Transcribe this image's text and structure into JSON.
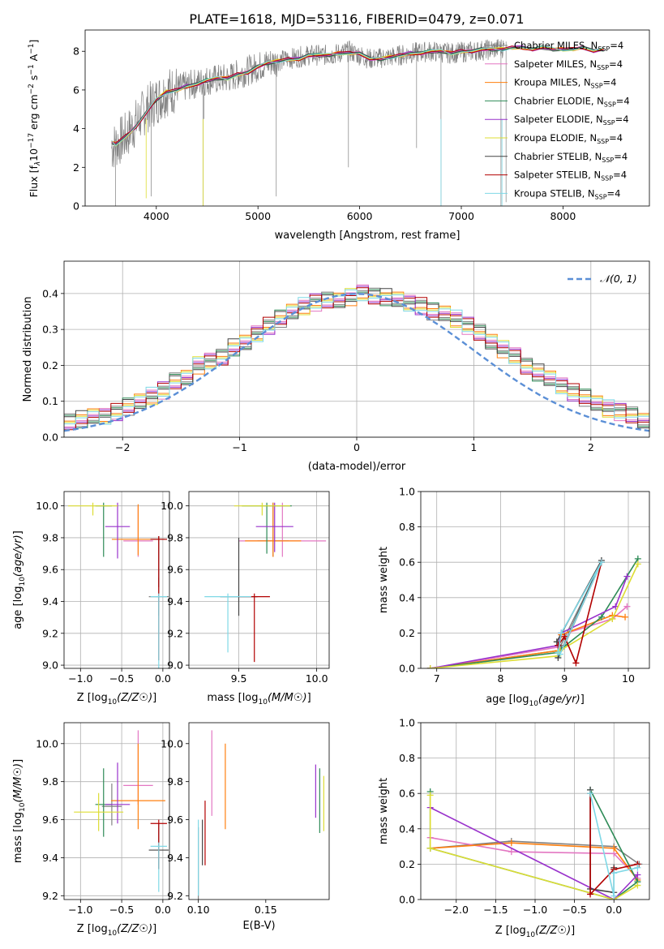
{
  "title": "PLATE=1618, MJD=53116, FIBERID=0479, z=0.071",
  "models": [
    {
      "label": "Chabrier MILES, N",
      "color": "#808080"
    },
    {
      "label": "Salpeter MILES, N",
      "color": "#e377c2"
    },
    {
      "label": "Kroupa MILES, N",
      "color": "#ff7f0e"
    },
    {
      "label": "Chabrier ELODIE, N",
      "color": "#2e8b57"
    },
    {
      "label": "Salpeter ELODIE, N",
      "color": "#9932cc"
    },
    {
      "label": "Kroupa ELODIE, N",
      "color": "#dddd33"
    },
    {
      "label": "Chabrier STELIB, N",
      "color": "#444444"
    },
    {
      "label": "Salpeter STELIB, N",
      "color": "#b20000"
    },
    {
      "label": "Kroupa STELIB, N",
      "color": "#7fd8e6"
    }
  ],
  "legend_suffix": {
    "sub": "SSP",
    "tail": "=4"
  },
  "gauss_legend": "𝒩(0, 1)",
  "chart_data": [
    {
      "type": "line",
      "panel": "spectrum",
      "xlabel": "wavelength [Angstrom, rest frame]",
      "ylabel_parts": [
        "Flux [f",
        "λ",
        "10",
        "−17",
        " erg cm",
        "−2",
        " s",
        "−1",
        " A",
        "−1",
        "]"
      ],
      "xlim": [
        3300,
        8850
      ],
      "ylim": [
        0,
        9.1
      ],
      "xticks": [
        4000,
        5000,
        6000,
        7000,
        8000
      ],
      "yticks": [
        0,
        2,
        4,
        6,
        8
      ],
      "grid": false,
      "legend": "right",
      "data_x": [
        3560,
        3700,
        3900,
        4100,
        4300,
        4500,
        4700,
        4900,
        5100,
        5300,
        5500,
        5700,
        5900,
        6100,
        6300,
        6500,
        6700,
        6900,
        7100,
        7300,
        7420
      ],
      "data_y": [
        3.0,
        3.6,
        5.0,
        5.9,
        6.2,
        6.5,
        6.6,
        7.0,
        7.4,
        7.6,
        7.8,
        7.8,
        8.0,
        7.6,
        7.7,
        7.9,
        8.0,
        7.9,
        8.0,
        8.1,
        8.2
      ],
      "model_x": [
        3560,
        3600,
        3700,
        3800,
        3900,
        4000,
        4100,
        4200,
        4300,
        4400,
        4500,
        4600,
        4700,
        4800,
        4900,
        5000,
        5100,
        5200,
        5300,
        5400,
        5500,
        5600,
        5700,
        5800,
        5900,
        6000,
        6100,
        6200,
        6300,
        6400,
        6500,
        6600,
        6700,
        6800,
        6900,
        7000,
        7100,
        7200,
        7300,
        7400,
        7500,
        7600,
        7700,
        7800,
        7900,
        8000,
        8100,
        8200,
        8300,
        8400
      ],
      "model_y": [
        3.3,
        3.2,
        3.6,
        4.1,
        4.8,
        5.5,
        5.9,
        6.0,
        6.2,
        6.3,
        6.5,
        6.6,
        6.6,
        6.8,
        6.9,
        7.2,
        7.4,
        7.5,
        7.6,
        7.6,
        7.8,
        7.8,
        7.8,
        7.9,
        7.9,
        7.9,
        7.6,
        7.6,
        7.7,
        7.8,
        7.9,
        7.9,
        8.0,
        8.0,
        7.9,
        8.0,
        8.0,
        8.1,
        8.1,
        8.1,
        8.2,
        8.2,
        8.1,
        8.2,
        8.1,
        8.1,
        8.1,
        8.2,
        8.0,
        8.1
      ]
    },
    {
      "type": "histogram",
      "panel": "residuals",
      "xlabel": "(data-model)/error",
      "ylabel": "Normed distribution",
      "xlim": [
        -2.5,
        2.5
      ],
      "ylim": [
        0,
        0.49
      ],
      "xticks": [
        -2,
        -1,
        0,
        1,
        2
      ],
      "yticks": [
        0.0,
        0.1,
        0.2,
        0.3,
        0.4
      ],
      "grid": true,
      "legend": "top-right",
      "bin_width": 0.1,
      "base_values": [
        0.03,
        0.032,
        0.035,
        0.04,
        0.045,
        0.05,
        0.055,
        0.06,
        0.07,
        0.085,
        0.1,
        0.115,
        0.13,
        0.155,
        0.17,
        0.2,
        0.21,
        0.225,
        0.25,
        0.26,
        0.29,
        0.31,
        0.33,
        0.35,
        0.365,
        0.375,
        0.38,
        0.385,
        0.39,
        0.4,
        0.395,
        0.39,
        0.38,
        0.375,
        0.365,
        0.35,
        0.345,
        0.33,
        0.31,
        0.29,
        0.27,
        0.245,
        0.225,
        0.2,
        0.18,
        0.16,
        0.145,
        0.125,
        0.11,
        0.095,
        0.08,
        0.07,
        0.06,
        0.05,
        0.045,
        0.04,
        0.035,
        0.03
      ]
    },
    {
      "type": "scatter",
      "panel": "age-vs-Z",
      "xlabel": "Z [log10(Z/Z☉)]",
      "ylabel": "age [log10(age/yr)]",
      "xlim": [
        -1.2,
        0.08
      ],
      "ylim": [
        8.98,
        10.09
      ],
      "xticks": [
        -1.0,
        -0.5,
        0.0
      ],
      "yticks": [
        9.0,
        9.2,
        9.4,
        9.6,
        9.8,
        10.0
      ],
      "grid": true,
      "points": [
        {
          "model": 0,
          "x": -0.05,
          "y": 9.43,
          "xerr": 0.12,
          "yerr": [
            0.12,
            0.12
          ]
        },
        {
          "model": 1,
          "x": -0.3,
          "y": 9.78,
          "xerr": 0.18,
          "yerr": [
            0.1,
            0.22
          ]
        },
        {
          "model": 2,
          "x": -0.3,
          "y": 9.79,
          "xerr": 0.32,
          "yerr": [
            0.1,
            0.22
          ]
        },
        {
          "model": 3,
          "x": -0.72,
          "y": 10.0,
          "xerr": 0.1,
          "yerr": [
            0.32,
            0.02
          ]
        },
        {
          "model": 4,
          "x": -0.55,
          "y": 9.87,
          "xerr": 0.15,
          "yerr": [
            0.2,
            0.15
          ]
        },
        {
          "model": 5,
          "x": -0.85,
          "y": 10.0,
          "xerr": 0.3,
          "yerr": [
            0.06,
            0.02
          ]
        },
        {
          "model": 6,
          "x": -0.05,
          "y": 9.79,
          "xerr": 0.1,
          "yerr": [
            0.3,
            0.02
          ]
        },
        {
          "model": 7,
          "x": -0.05,
          "y": 9.79,
          "xerr": 0.1,
          "yerr": [
            0.76,
            0.02
          ]
        },
        {
          "model": 8,
          "x": -0.05,
          "y": 9.43,
          "xerr": 0.1,
          "yerr": [
            0.5,
            0.02
          ]
        }
      ]
    },
    {
      "type": "scatter",
      "panel": "age-vs-mass",
      "xlabel": "mass [log10(M/M☉)]",
      "ylabel": "",
      "xlim": [
        9.18,
        10.08
      ],
      "ylim": [
        8.98,
        10.09
      ],
      "xticks": [
        9.5,
        10.0
      ],
      "yticks": [
        9.0,
        9.2,
        9.4,
        9.6,
        9.8,
        10.0
      ],
      "grid": true,
      "points": [
        {
          "model": 0,
          "x": 9.72,
          "y": 9.78,
          "xerr": 0.1,
          "yerr": [
            0.1,
            0.24
          ]
        },
        {
          "model": 1,
          "x": 9.78,
          "y": 9.78,
          "xerr": 0.28,
          "yerr": [
            0.1,
            0.24
          ]
        },
        {
          "model": 2,
          "x": 9.72,
          "y": 9.78,
          "xerr": 0.18,
          "yerr": [
            0.1,
            0.24
          ]
        },
        {
          "model": 3,
          "x": 9.68,
          "y": 10.0,
          "xerr": 0.16,
          "yerr": [
            0.3,
            0.02
          ]
        },
        {
          "model": 4,
          "x": 9.73,
          "y": 9.87,
          "xerr": 0.12,
          "yerr": [
            0.16,
            0.15
          ]
        },
        {
          "model": 5,
          "x": 9.65,
          "y": 10.0,
          "xerr": 0.18,
          "yerr": [
            0.06,
            0.02
          ]
        },
        {
          "model": 6,
          "x": 9.5,
          "y": 9.43,
          "xerr": 0.12,
          "yerr": [
            0.12,
            0.37
          ]
        },
        {
          "model": 7,
          "x": 9.6,
          "y": 9.43,
          "xerr": 0.1,
          "yerr": [
            0.41,
            0.02
          ]
        },
        {
          "model": 8,
          "x": 9.43,
          "y": 9.43,
          "xerr": 0.15,
          "yerr": [
            0.35,
            0.02
          ]
        }
      ]
    },
    {
      "type": "line",
      "panel": "mass-weight-vs-age",
      "xlabel": "age [log10(age/yr)]",
      "ylabel": "mass weight",
      "xlim": [
        6.75,
        10.33
      ],
      "ylim": [
        0,
        1.0
      ],
      "xticks": [
        7,
        8,
        9,
        10
      ],
      "yticks": [
        0.0,
        0.2,
        0.4,
        0.6,
        0.8,
        1.0
      ],
      "grid": true,
      "series": [
        {
          "model": 0,
          "x": [
            6.9,
            8.9,
            8.93,
            9.58,
            9.0
          ],
          "y": [
            0.0,
            0.1,
            0.12,
            0.6,
            0.13
          ]
        },
        {
          "model": 1,
          "x": [
            6.9,
            8.9,
            8.95,
            9.75,
            9.98
          ],
          "y": [
            0.0,
            0.12,
            0.19,
            0.28,
            0.35
          ]
        },
        {
          "model": 2,
          "x": [
            6.9,
            8.9,
            8.95,
            9.75,
            9.95
          ],
          "y": [
            0.0,
            0.1,
            0.19,
            0.3,
            0.29
          ]
        },
        {
          "model": 3,
          "x": [
            6.9,
            8.9,
            8.95,
            9.58,
            10.15
          ],
          "y": [
            0.0,
            0.09,
            0.11,
            0.29,
            0.62
          ]
        },
        {
          "model": 4,
          "x": [
            6.9,
            8.9,
            8.95,
            9.8,
            9.98
          ],
          "y": [
            0.0,
            0.13,
            0.2,
            0.35,
            0.52
          ]
        },
        {
          "model": 5,
          "x": [
            6.9,
            8.9,
            8.93,
            9.75,
            10.15
          ],
          "y": [
            0.0,
            0.07,
            0.1,
            0.28,
            0.59
          ]
        },
        {
          "model": 6,
          "x": [
            8.88,
            9.58,
            8.9
          ],
          "y": [
            0.15,
            0.61,
            0.06
          ]
        },
        {
          "model": 7,
          "x": [
            8.9,
            9.0,
            9.18,
            9.58
          ],
          "y": [
            0.13,
            0.18,
            0.03,
            0.6
          ]
        },
        {
          "model": 8,
          "x": [
            8.9,
            8.95,
            9.58,
            8.93
          ],
          "y": [
            0.09,
            0.2,
            0.6,
            0.08
          ]
        }
      ]
    },
    {
      "type": "scatter",
      "panel": "mass-vs-Z",
      "xlabel": "Z [log10(Z/Z☉)]",
      "ylabel": "mass [log10(M/M☉)]",
      "xlim": [
        -1.2,
        0.08
      ],
      "ylim": [
        9.18,
        10.11
      ],
      "xticks": [
        -1.0,
        -0.5,
        0.0
      ],
      "yticks": [
        9.2,
        9.4,
        9.6,
        9.8,
        10.0
      ],
      "grid": true,
      "points": [
        {
          "model": 0,
          "x": -0.62,
          "y": 9.67,
          "xerr": 0.12,
          "yerr": [
            0.1,
            0.12
          ]
        },
        {
          "model": 1,
          "x": -0.3,
          "y": 9.78,
          "xerr": 0.18,
          "yerr": [
            0.1,
            0.29
          ]
        },
        {
          "model": 2,
          "x": -0.3,
          "y": 9.7,
          "xerr": 0.33,
          "yerr": [
            0.15,
            0.3
          ]
        },
        {
          "model": 3,
          "x": -0.72,
          "y": 9.68,
          "xerr": 0.1,
          "yerr": [
            0.17,
            0.19
          ]
        },
        {
          "model": 4,
          "x": -0.55,
          "y": 9.68,
          "xerr": 0.15,
          "yerr": [
            0.1,
            0.22
          ]
        },
        {
          "model": 5,
          "x": -0.78,
          "y": 9.64,
          "xerr": 0.3,
          "yerr": [
            0.1,
            0.1
          ]
        },
        {
          "model": 6,
          "x": -0.05,
          "y": 9.44,
          "xerr": 0.12,
          "yerr": [
            0.1,
            0.14
          ]
        },
        {
          "model": 7,
          "x": -0.05,
          "y": 9.58,
          "xerr": 0.1,
          "yerr": [
            0.24,
            0.02
          ]
        },
        {
          "model": 8,
          "x": -0.05,
          "y": 9.46,
          "xerr": 0.1,
          "yerr": [
            0.24,
            0.02
          ]
        }
      ]
    },
    {
      "type": "scatter",
      "panel": "mass-vs-EBV",
      "xlabel": "E(B-V)",
      "ylabel": "",
      "xlim": [
        0.093,
        0.197
      ],
      "ylim": [
        9.18,
        10.11
      ],
      "xticks": [
        0.1,
        0.15
      ],
      "yticks": [
        9.2,
        9.4,
        9.6,
        9.8,
        10.0
      ],
      "grid": false,
      "points": [
        {
          "model": 0,
          "x": 0.1,
          "y": 9.46,
          "xerr": 0,
          "yerr": [
            0.28,
            0.1
          ]
        },
        {
          "model": 1,
          "x": 0.11,
          "y": 9.82,
          "xerr": 0,
          "yerr": [
            0.2,
            0.25
          ]
        },
        {
          "model": 2,
          "x": 0.12,
          "y": 9.78,
          "xerr": 0,
          "yerr": [
            0.23,
            0.22
          ]
        },
        {
          "model": 3,
          "x": 0.19,
          "y": 9.7,
          "xerr": 0,
          "yerr": [
            0.17,
            0.17
          ]
        },
        {
          "model": 4,
          "x": 0.187,
          "y": 9.76,
          "xerr": 0,
          "yerr": [
            0.15,
            0.13
          ]
        },
        {
          "model": 5,
          "x": 0.193,
          "y": 9.69,
          "xerr": 0,
          "yerr": [
            0.15,
            0.14
          ]
        },
        {
          "model": 6,
          "x": 0.103,
          "y": 9.48,
          "xerr": 0,
          "yerr": [
            0.12,
            0.12
          ]
        },
        {
          "model": 7,
          "x": 0.105,
          "y": 9.53,
          "xerr": 0,
          "yerr": [
            0.17,
            0.17
          ]
        },
        {
          "model": 8,
          "x": 0.1,
          "y": 9.4,
          "xerr": 0,
          "yerr": [
            0.2,
            0.2
          ]
        }
      ]
    },
    {
      "type": "line",
      "panel": "mass-weight-vs-Z",
      "xlabel": "Z [log10(Z/Z☉)]",
      "ylabel": "mass weight",
      "xlim": [
        -2.45,
        0.45
      ],
      "ylim": [
        0,
        1.0
      ],
      "xticks": [
        -2.0,
        -1.5,
        -1.0,
        -0.5,
        0.0
      ],
      "yticks": [
        0.0,
        0.2,
        0.4,
        0.6,
        0.8,
        1.0
      ],
      "grid": true,
      "series": [
        {
          "model": 0,
          "x": [
            -2.33,
            -1.3,
            0.0,
            0.32
          ],
          "y": [
            0.29,
            0.33,
            0.3,
            0.2
          ]
        },
        {
          "model": 1,
          "x": [
            -2.33,
            -1.3,
            0.0,
            0.3
          ],
          "y": [
            0.35,
            0.27,
            0.26,
            0.12
          ]
        },
        {
          "model": 2,
          "x": [
            -2.33,
            -1.3,
            0.0,
            0.3
          ],
          "y": [
            0.29,
            0.32,
            0.29,
            0.11
          ]
        },
        {
          "model": 3,
          "x": [
            -2.33,
            -2.33,
            0.0,
            0.3,
            -0.3
          ],
          "y": [
            0.61,
            0.29,
            0.0,
            0.1,
            0.62
          ]
        },
        {
          "model": 4,
          "x": [
            -2.33,
            0.0,
            0.3
          ],
          "y": [
            0.52,
            0.0,
            0.14
          ]
        },
        {
          "model": 5,
          "x": [
            -2.33,
            -2.33,
            0.0,
            0.3
          ],
          "y": [
            0.59,
            0.29,
            0.0,
            0.08
          ]
        },
        {
          "model": 6,
          "x": [
            -0.3,
            -0.3,
            0.0,
            0.0
          ],
          "y": [
            0.62,
            0.06,
            0.04,
            0.18
          ]
        },
        {
          "model": 7,
          "x": [
            -0.3,
            -0.3,
            0.0,
            0.3
          ],
          "y": [
            0.6,
            0.03,
            0.17,
            0.2
          ]
        },
        {
          "model": 8,
          "x": [
            -0.3,
            0.0,
            0.0,
            0.3
          ],
          "y": [
            0.6,
            0.02,
            0.15,
            0.18
          ]
        }
      ]
    }
  ]
}
